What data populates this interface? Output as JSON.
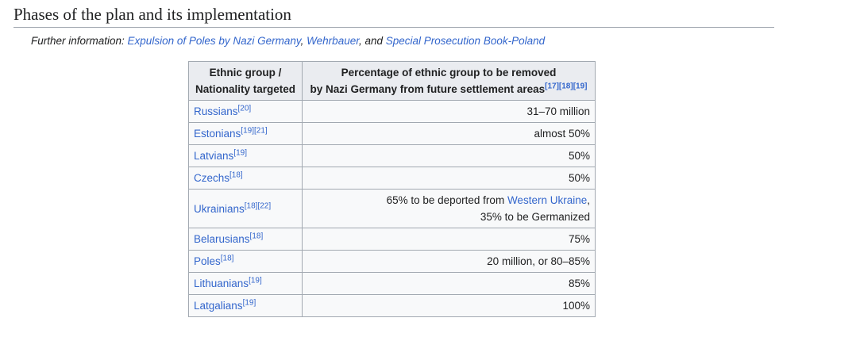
{
  "section": {
    "title": "Phases of the plan and its implementation"
  },
  "hatnote": {
    "prefix": "Further information: ",
    "link1": "Expulsion of Poles by Nazi Germany",
    "sep1": ", ",
    "link2": "Wehrbauer",
    "sep2": ", and ",
    "link3": "Special Prosecution Book-Poland"
  },
  "table": {
    "header1_line1": "Ethnic group /",
    "header1_line2": "Nationality targeted",
    "header2_line1": "Percentage of ethnic group to be removed",
    "header2_line2": "by Nazi Germany from future settlement areas",
    "header2_refs": "[17][18][19]",
    "rows": [
      {
        "group": "Russians",
        "refs": "[20]",
        "value": "31–70 million"
      },
      {
        "group": "Estonians",
        "refs": "[19][21]",
        "value": "almost 50%"
      },
      {
        "group": "Latvians",
        "refs": "[19]",
        "value": "50%"
      },
      {
        "group": "Czechs",
        "refs": "[18]",
        "value": "50%"
      },
      {
        "group": "Ukrainians",
        "refs": "[18][22]",
        "value_line1_text": "65% to be deported from ",
        "value_line1_link": "Western Ukraine",
        "value_line1_end": ",",
        "value_line2": "35% to be Germanized"
      },
      {
        "group": "Belarusians",
        "refs": "[18]",
        "value": "75%"
      },
      {
        "group": "Poles",
        "refs": "[18]",
        "value": "20 million, or 80–85%"
      },
      {
        "group": "Lithuanians",
        "refs": "[19]",
        "value": "85%"
      },
      {
        "group": "Latgalians",
        "refs": "[19]",
        "value": "100%"
      }
    ]
  }
}
